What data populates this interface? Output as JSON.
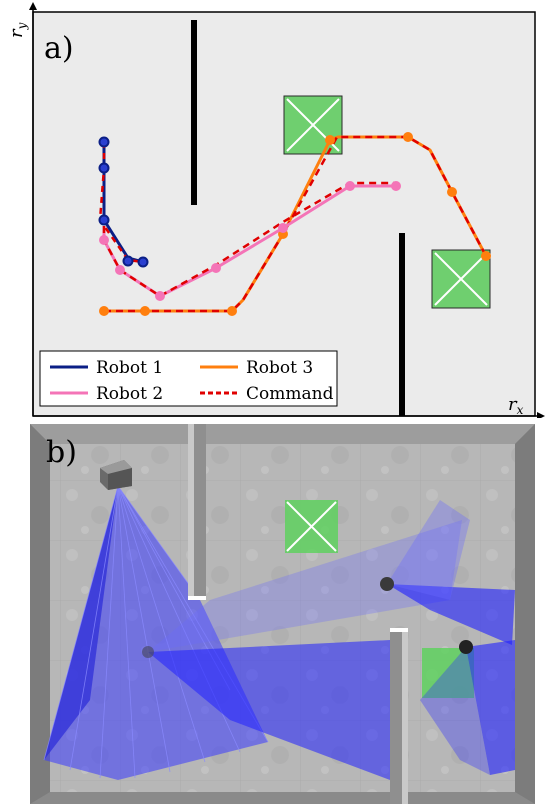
{
  "panel_a": {
    "label": "a)",
    "x_axis_label": "r",
    "x_axis_subscript": "x",
    "y_axis_label": "r",
    "y_axis_subscript": "y",
    "colors": {
      "background": "#ebebeb",
      "robot1": "#0b1f86",
      "robot2": "#f474b7",
      "robot3": "#ff7f0e",
      "command": "#e00000",
      "goal_fill": "#6fcf6f",
      "wall": "#000000"
    },
    "legend": {
      "robot1": "Robot 1",
      "robot2": "Robot 2",
      "robot3": "Robot 3",
      "command": "Command"
    }
  },
  "panel_b": {
    "label": "b)",
    "colors": {
      "floor": "#b9b9b9",
      "wall": "#8a8a8a",
      "fov": "#3a3aff",
      "goal": "#5fd15f"
    }
  }
}
